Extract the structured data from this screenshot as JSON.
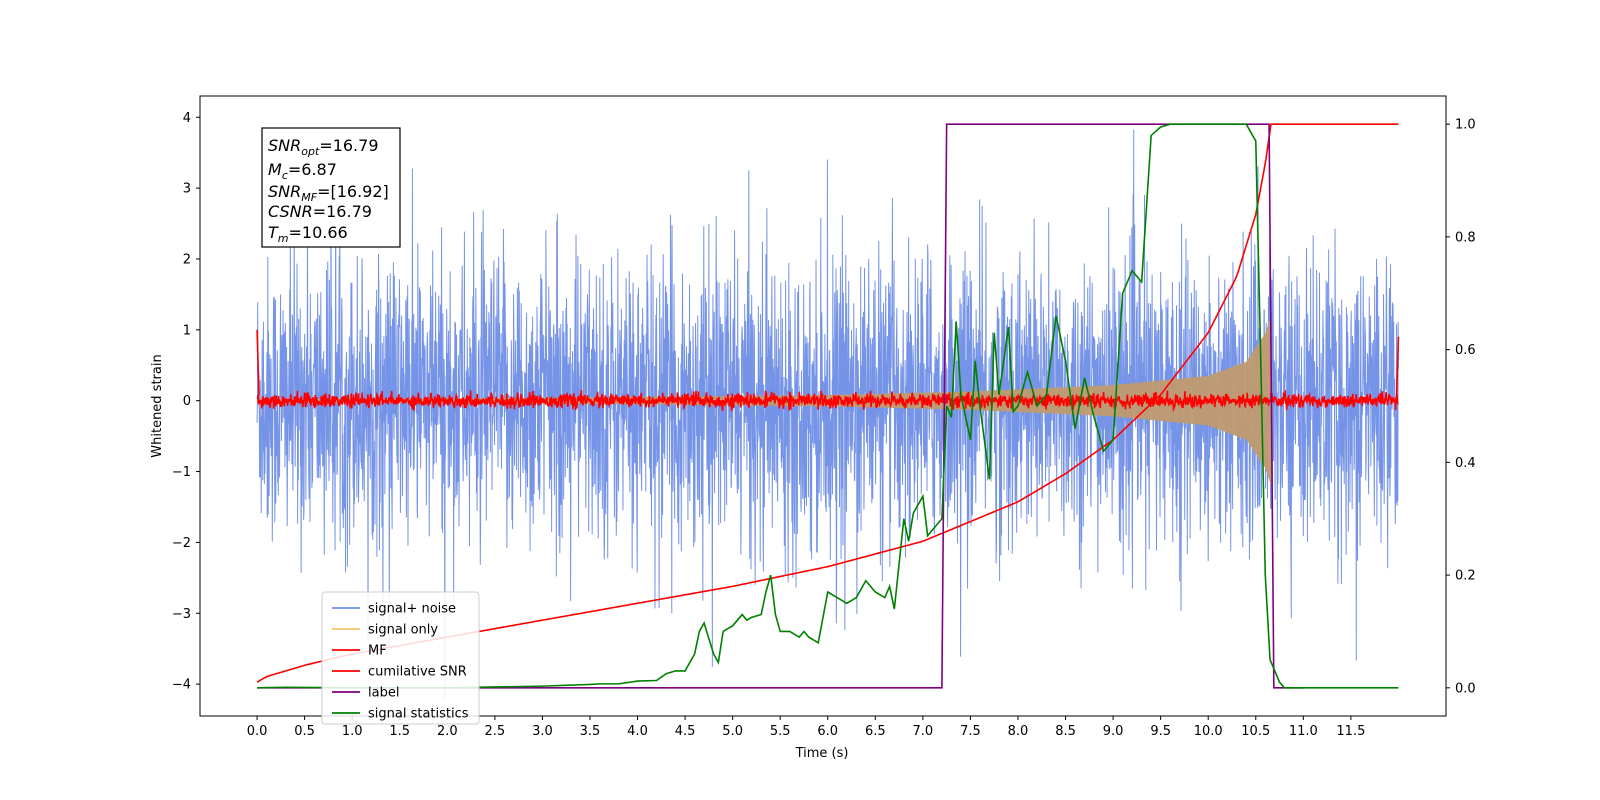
{
  "chart_data": {
    "type": "line",
    "xlabel": "Time (s)",
    "ylabel": "Whitened strain",
    "xlim": [
      -0.6,
      12.5
    ],
    "ylim": [
      -4.45,
      4.3
    ],
    "ylim_right": [
      -0.05,
      1.05
    ],
    "x_ticks": [
      "0.0",
      "0.5",
      "1.0",
      "1.5",
      "2.0",
      "2.5",
      "3.0",
      "3.5",
      "4.0",
      "4.5",
      "5.0",
      "5.5",
      "6.0",
      "6.5",
      "7.0",
      "7.5",
      "8.0",
      "8.5",
      "9.0",
      "9.5",
      "10.0",
      "10.5",
      "11.0",
      "11.5"
    ],
    "y_ticks_left": [
      "4",
      "3",
      "2",
      "1",
      "0",
      "−1",
      "−2",
      "−3",
      "−4"
    ],
    "y_ticks_right": [
      "1.0",
      "0.8",
      "0.6",
      "0.4",
      "0.2",
      "0.0"
    ],
    "legend_position": "lower-left",
    "info_box": {
      "snr_opt_label": "SNR",
      "snr_opt_sub": "opt",
      "snr_opt_value": "=16.79",
      "mc_label": "M",
      "mc_sub": "c",
      "mc_value": "=6.87",
      "snr_mf_label": "SNR",
      "snr_mf_sub": "MF",
      "snr_mf_value": "=[16.92]",
      "csnr_label": "CSNR",
      "csnr_value": "=16.79",
      "tm_label": "T",
      "tm_sub": "m",
      "tm_value": "=10.66"
    },
    "series": [
      {
        "name": "signal+ noise",
        "color": "#6f8ee6",
        "axis": "left",
        "noise_amplitude": 1.0,
        "range": [
          0.0,
          12.0
        ]
      },
      {
        "name": "signal only",
        "color": "#f5c26b",
        "axis": "left",
        "envelope": [
          [
            0.0,
            0.02
          ],
          [
            3.0,
            0.04
          ],
          [
            6.0,
            0.08
          ],
          [
            7.5,
            0.13
          ],
          [
            9.0,
            0.22
          ],
          [
            10.0,
            0.35
          ],
          [
            10.4,
            0.55
          ],
          [
            10.6,
            0.95
          ],
          [
            10.66,
            1.2
          ],
          [
            10.67,
            0.0
          ],
          [
            12.0,
            0.0
          ]
        ]
      },
      {
        "name": "MF",
        "color": "#ff0000",
        "axis": "left",
        "noise_amplitude": 0.05,
        "range": [
          0.0,
          12.0
        ],
        "edges": [
          1.0,
          0.9
        ]
      },
      {
        "name": "cumilative SNR",
        "color": "#ff0000",
        "axis": "right",
        "x": [
          0.0,
          0.1,
          0.5,
          1.0,
          2.0,
          3.0,
          4.0,
          5.0,
          6.0,
          7.0,
          8.0,
          8.5,
          9.0,
          9.5,
          10.0,
          10.3,
          10.5,
          10.6,
          10.66,
          12.0
        ],
        "y": [
          0.01,
          0.02,
          0.04,
          0.06,
          0.09,
          0.12,
          0.15,
          0.18,
          0.215,
          0.26,
          0.33,
          0.38,
          0.44,
          0.52,
          0.63,
          0.73,
          0.84,
          0.93,
          1.0,
          1.0
        ]
      },
      {
        "name": "label",
        "color": "#800080",
        "axis": "right",
        "x": [
          0.0,
          7.2,
          7.25,
          10.64,
          10.69,
          11.0
        ],
        "y": [
          0.0,
          0.0,
          1.0,
          1.0,
          0.0,
          0.0
        ]
      },
      {
        "name": "signal statistics",
        "color": "#008000",
        "axis": "right",
        "x": [
          0.0,
          0.3,
          1.0,
          2.0,
          3.0,
          3.5,
          3.6,
          3.8,
          4.0,
          4.2,
          4.3,
          4.4,
          4.5,
          4.6,
          4.65,
          4.7,
          4.8,
          4.85,
          4.9,
          5.0,
          5.1,
          5.15,
          5.2,
          5.3,
          5.35,
          5.4,
          5.45,
          5.5,
          5.6,
          5.7,
          5.75,
          5.8,
          5.9,
          6.0,
          6.1,
          6.2,
          6.3,
          6.4,
          6.5,
          6.6,
          6.65,
          6.7,
          6.8,
          6.85,
          6.9,
          7.0,
          7.05,
          7.1,
          7.2,
          7.25,
          7.3,
          7.35,
          7.4,
          7.5,
          7.55,
          7.6,
          7.7,
          7.75,
          7.8,
          7.9,
          7.95,
          8.0,
          8.1,
          8.2,
          8.3,
          8.4,
          8.5,
          8.6,
          8.7,
          8.8,
          8.9,
          9.0,
          9.1,
          9.2,
          9.3,
          9.4,
          9.5,
          9.6,
          9.8,
          10.0,
          10.2,
          10.4,
          10.5,
          10.55,
          10.6,
          10.65,
          10.7,
          10.75,
          10.8,
          10.9,
          11.0,
          12.0
        ],
        "y": [
          0.0,
          0.001,
          0.0,
          0.0,
          0.003,
          0.006,
          0.007,
          0.007,
          0.012,
          0.013,
          0.025,
          0.03,
          0.03,
          0.06,
          0.1,
          0.115,
          0.06,
          0.045,
          0.1,
          0.11,
          0.13,
          0.12,
          0.125,
          0.13,
          0.17,
          0.2,
          0.13,
          0.1,
          0.1,
          0.09,
          0.1,
          0.09,
          0.08,
          0.17,
          0.16,
          0.15,
          0.16,
          0.19,
          0.17,
          0.16,
          0.18,
          0.14,
          0.3,
          0.26,
          0.31,
          0.34,
          0.27,
          0.28,
          0.3,
          0.5,
          0.48,
          0.65,
          0.52,
          0.44,
          0.58,
          0.5,
          0.37,
          0.63,
          0.52,
          0.64,
          0.49,
          0.5,
          0.56,
          0.5,
          0.52,
          0.66,
          0.58,
          0.46,
          0.55,
          0.48,
          0.42,
          0.44,
          0.7,
          0.74,
          0.72,
          0.98,
          0.995,
          1.0,
          1.0,
          1.0,
          1.0,
          1.0,
          0.97,
          0.6,
          0.2,
          0.05,
          0.03,
          0.01,
          0.0,
          0.0,
          0.0,
          0.0
        ]
      }
    ]
  }
}
